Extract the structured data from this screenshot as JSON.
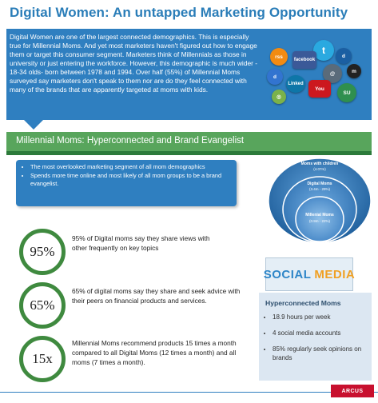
{
  "header": {
    "title": "Digital Women: An untapped Marketing Opportunity",
    "intro": "Digital Women are one of the largest connected demographics. This is especially true for Millennial Moms. And yet most marketers haven't figured out how to engage them or target this consumer segment. Marketers think of Millennials as those in university or just entering the workforce. However, this demographic is much wider - 18-34 olds- born between 1978 and 1994. Over half (55%) of Millennial Moms surveyed say marketers don't speak to them nor are do they feel connected with many of the brands that are apparently targeted at moms with kids."
  },
  "section": {
    "title": "Millennial Moms: Hyperconnected and Brand Evangelist",
    "bullets": [
      "The most overlooked marketing segment of all mom demographics",
      "Spends more time online and most likely of all mom groups to be a brand evangelist."
    ]
  },
  "circles": {
    "outer": {
      "label": "Moms with children",
      "value": "(4.07m)"
    },
    "middle": {
      "label": "Digital Moms",
      "value": "(3.4m - 29%)"
    },
    "inner": {
      "label": "Millenial Moms",
      "value": "(0.9m - 22%)"
    }
  },
  "stats": [
    {
      "value": "95%",
      "text": "95% of Digital moms say they share views with other frequently on key topics"
    },
    {
      "value": "65%",
      "text": "65% of digital moms say they share and seek advice with their peers on financial products and services."
    },
    {
      "value": "15x",
      "text": "Millennial Moms recommend products 15 times a month compared to all Digital Moms (12 times a month) and all moms (7 times a month)."
    }
  ],
  "social_banner": {
    "word1": "SOCIAL",
    "word2": "MEDIA"
  },
  "hyperconnected": {
    "title": "Hyperconnected Moms",
    "items": [
      "18.9 hours per week",
      "4 social media accounts",
      "85% regularly seek opinions on brands"
    ]
  },
  "social_icons": [
    "twitter",
    "facebook",
    "rss",
    "linkedin",
    "youtube",
    "stumbleupon",
    "myspace",
    "digg",
    "delicious",
    "email"
  ],
  "footer": {
    "logo": "ARCUS"
  },
  "colors": {
    "title_blue": "#2a7db8",
    "panel_blue": "#2f7fc0",
    "green": "#58a55c",
    "ring_green": "#3f8a3f"
  }
}
